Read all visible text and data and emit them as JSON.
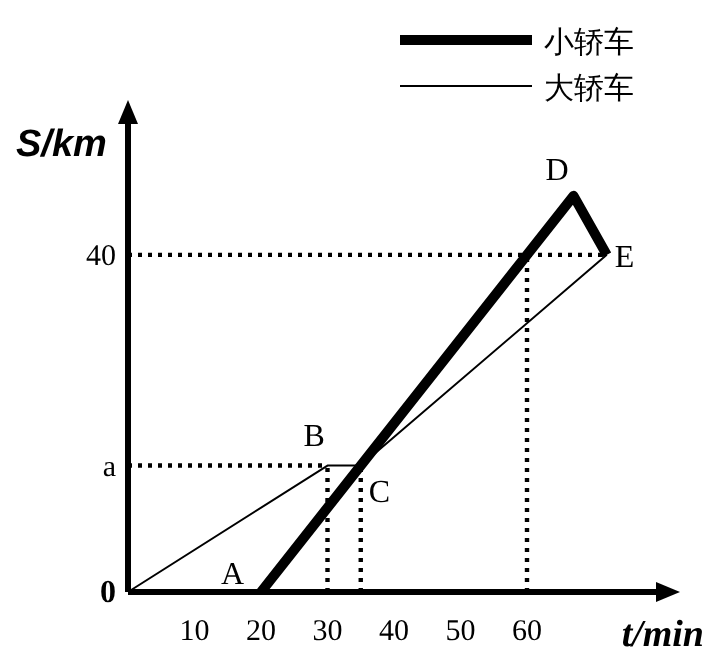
{
  "chart_data": {
    "type": "line",
    "xlabel": "t/min",
    "ylabel": "S/km",
    "xlim": [
      0,
      80
    ],
    "ylim": [
      0,
      56
    ],
    "xticks": [
      10,
      20,
      30,
      40,
      50,
      60
    ],
    "yticks": [
      0,
      {
        "value": 15,
        "label": "a"
      },
      40
    ],
    "series": [
      {
        "name": "小轿车",
        "color": "#000000",
        "x": [
          20,
          67,
          72
        ],
        "values": [
          0,
          47,
          40
        ]
      },
      {
        "name": "大轿车",
        "color": "#000000",
        "x": [
          0,
          30,
          35,
          72
        ],
        "values": [
          0,
          15,
          15,
          40
        ]
      }
    ],
    "ref_lines": [
      {
        "axis": "y",
        "value": 40,
        "line_style": "dotted"
      },
      {
        "axis": "y",
        "value": 15,
        "line_style": "dotted"
      },
      {
        "axis": "x",
        "value": 30,
        "line_style": "dotted"
      },
      {
        "axis": "x",
        "value": 35,
        "line_style": "dotted"
      },
      {
        "axis": "x",
        "value": 60,
        "line_style": "dotted"
      }
    ],
    "annotations": [
      {
        "text": "A",
        "x": 20,
        "y": 0
      },
      {
        "text": "B",
        "x": 30,
        "y": 15
      },
      {
        "text": "C",
        "x": 35,
        "y": 15
      },
      {
        "text": "D",
        "x": 67,
        "y": 47
      },
      {
        "text": "E",
        "x": 72,
        "y": 40
      }
    ],
    "legend": "top right",
    "grid": false
  }
}
